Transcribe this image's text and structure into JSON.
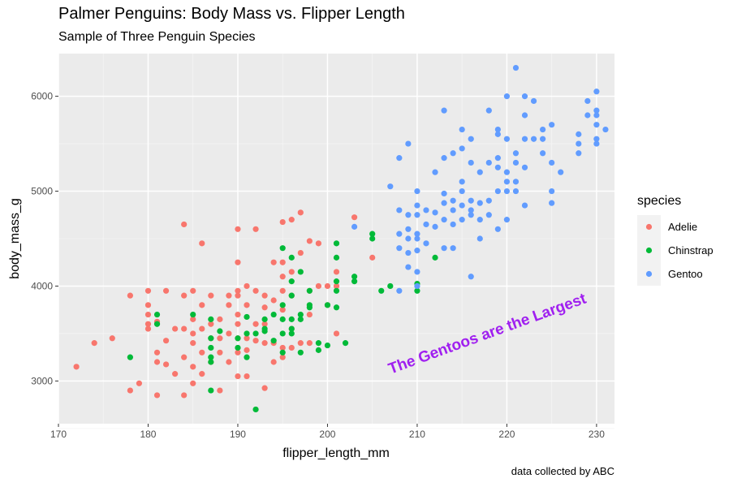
{
  "chart_data": {
    "type": "scatter",
    "title": "Palmer Penguins: Body Mass vs. Flipper Length",
    "subtitle": "Sample of Three Penguin Species",
    "caption": "data collected by ABC",
    "xlabel": "flipper_length_mm",
    "ylabel": "body_mass_g",
    "xlim": [
      170,
      232
    ],
    "ylim": [
      2550,
      6450
    ],
    "xticks": [
      170,
      180,
      190,
      200,
      210,
      220,
      230
    ],
    "yticks": [
      3000,
      4000,
      5000,
      6000
    ],
    "grid": true,
    "legend_title": "species",
    "legend_position": "right",
    "annotation": {
      "text": "The Gentoos are the Largest",
      "x": 218,
      "y": 3450,
      "angle": -20,
      "color": "#a020f0"
    },
    "series": [
      {
        "name": "Adelie",
        "color": "#f8766d",
        "points": [
          [
            172,
            3150
          ],
          [
            174,
            3400
          ],
          [
            176,
            3450
          ],
          [
            178,
            2900
          ],
          [
            178,
            3900
          ],
          [
            179,
            2975
          ],
          [
            180,
            3550
          ],
          [
            180,
            3600
          ],
          [
            180,
            3700
          ],
          [
            180,
            3800
          ],
          [
            180,
            3950
          ],
          [
            181,
            2850
          ],
          [
            181,
            3200
          ],
          [
            181,
            3300
          ],
          [
            181,
            3625
          ],
          [
            182,
            3175
          ],
          [
            182,
            3425
          ],
          [
            182,
            3950
          ],
          [
            183,
            3075
          ],
          [
            183,
            3550
          ],
          [
            184,
            2850
          ],
          [
            184,
            3250
          ],
          [
            184,
            3550
          ],
          [
            184,
            3900
          ],
          [
            184,
            4650
          ],
          [
            185,
            2975
          ],
          [
            185,
            3150
          ],
          [
            185,
            3400
          ],
          [
            185,
            3500
          ],
          [
            185,
            3650
          ],
          [
            185,
            3950
          ],
          [
            186,
            3075
          ],
          [
            186,
            3300
          ],
          [
            186,
            3550
          ],
          [
            186,
            3800
          ],
          [
            186,
            4450
          ],
          [
            187,
            3200
          ],
          [
            187,
            3450
          ],
          [
            187,
            3600
          ],
          [
            187,
            3900
          ],
          [
            188,
            2900
          ],
          [
            188,
            3300
          ],
          [
            188,
            3450
          ],
          [
            188,
            3650
          ],
          [
            189,
            3200
          ],
          [
            189,
            3500
          ],
          [
            189,
            3800
          ],
          [
            189,
            3900
          ],
          [
            190,
            3050
          ],
          [
            190,
            3300
          ],
          [
            190,
            3450
          ],
          [
            190,
            3600
          ],
          [
            190,
            3700
          ],
          [
            190,
            3900
          ],
          [
            190,
            3950
          ],
          [
            190,
            4250
          ],
          [
            190,
            4600
          ],
          [
            191,
            3050
          ],
          [
            191,
            3325
          ],
          [
            191,
            3450
          ],
          [
            191,
            3800
          ],
          [
            191,
            4000
          ],
          [
            192,
            3425
          ],
          [
            192,
            3600
          ],
          [
            192,
            3950
          ],
          [
            192,
            4600
          ],
          [
            193,
            2925
          ],
          [
            193,
            3400
          ],
          [
            193,
            3600
          ],
          [
            193,
            3775
          ],
          [
            193,
            3900
          ],
          [
            194,
            3200
          ],
          [
            194,
            3400
          ],
          [
            194,
            3850
          ],
          [
            194,
            4250
          ],
          [
            195,
            3250
          ],
          [
            195,
            3350
          ],
          [
            195,
            3750
          ],
          [
            195,
            3950
          ],
          [
            195,
            4100
          ],
          [
            195,
            4250
          ],
          [
            195,
            4675
          ],
          [
            196,
            3350
          ],
          [
            196,
            3550
          ],
          [
            196,
            3900
          ],
          [
            196,
            4150
          ],
          [
            196,
            4700
          ],
          [
            197,
            3400
          ],
          [
            197,
            4350
          ],
          [
            197,
            4775
          ],
          [
            198,
            3400
          ],
          [
            198,
            3700
          ],
          [
            198,
            3950
          ],
          [
            198,
            4475
          ],
          [
            199,
            4000
          ],
          [
            199,
            4450
          ],
          [
            200,
            3800
          ],
          [
            200,
            4000
          ],
          [
            201,
            3500
          ],
          [
            201,
            4000
          ],
          [
            201,
            4150
          ],
          [
            203,
            4725
          ],
          [
            205,
            4300
          ]
        ]
      },
      {
        "name": "Chinstrap",
        "color": "#00ba38",
        "points": [
          [
            178,
            3250
          ],
          [
            181,
            3600
          ],
          [
            181,
            3700
          ],
          [
            185,
            3700
          ],
          [
            187,
            2900
          ],
          [
            187,
            3200
          ],
          [
            187,
            3250
          ],
          [
            187,
            3350
          ],
          [
            187,
            3450
          ],
          [
            187,
            3650
          ],
          [
            188,
            3525
          ],
          [
            190,
            3350
          ],
          [
            190,
            3450
          ],
          [
            191,
            3250
          ],
          [
            191,
            3500
          ],
          [
            191,
            3675
          ],
          [
            192,
            2700
          ],
          [
            192,
            3500
          ],
          [
            193,
            3525
          ],
          [
            193,
            3650
          ],
          [
            194,
            3425
          ],
          [
            194,
            3700
          ],
          [
            195,
            3300
          ],
          [
            195,
            3500
          ],
          [
            195,
            3650
          ],
          [
            195,
            3800
          ],
          [
            195,
            4400
          ],
          [
            196,
            3500
          ],
          [
            196,
            3550
          ],
          [
            196,
            3900
          ],
          [
            196,
            4050
          ],
          [
            196,
            4300
          ],
          [
            197,
            3300
          ],
          [
            197,
            3650
          ],
          [
            197,
            3700
          ],
          [
            197,
            4150
          ],
          [
            198,
            3775
          ],
          [
            198,
            3800
          ],
          [
            198,
            3950
          ],
          [
            199,
            3325
          ],
          [
            199,
            3400
          ],
          [
            200,
            3375
          ],
          [
            200,
            3800
          ],
          [
            201,
            3775
          ],
          [
            201,
            4050
          ],
          [
            201,
            4300
          ],
          [
            201,
            4450
          ],
          [
            202,
            3400
          ],
          [
            203,
            4050
          ],
          [
            203,
            4100
          ],
          [
            205,
            4500
          ],
          [
            205,
            4550
          ],
          [
            206,
            3950
          ],
          [
            207,
            4000
          ],
          [
            210,
            3950
          ],
          [
            210,
            4025
          ],
          [
            212,
            4300
          ],
          [
            201,
            3950
          ],
          [
            193,
            3550
          ],
          [
            196,
            3650
          ]
        ]
      },
      {
        "name": "Gentoo",
        "color": "#619cff",
        "points": [
          [
            203,
            4625
          ],
          [
            207,
            5050
          ],
          [
            208,
            3950
          ],
          [
            208,
            4400
          ],
          [
            208,
            4550
          ],
          [
            208,
            4800
          ],
          [
            208,
            5350
          ],
          [
            209,
            4200
          ],
          [
            209,
            4350
          ],
          [
            209,
            4500
          ],
          [
            209,
            4600
          ],
          [
            209,
            4750
          ],
          [
            209,
            5500
          ],
          [
            210,
            4000
          ],
          [
            210,
            4150
          ],
          [
            210,
            4375
          ],
          [
            210,
            4500
          ],
          [
            210,
            4550
          ],
          [
            210,
            4750
          ],
          [
            210,
            4850
          ],
          [
            210,
            5000
          ],
          [
            211,
            4450
          ],
          [
            211,
            4650
          ],
          [
            211,
            4800
          ],
          [
            212,
            4625
          ],
          [
            212,
            4775
          ],
          [
            212,
            5200
          ],
          [
            213,
            4400
          ],
          [
            213,
            4700
          ],
          [
            213,
            4875
          ],
          [
            213,
            4975
          ],
          [
            213,
            5350
          ],
          [
            213,
            5850
          ],
          [
            214,
            4400
          ],
          [
            214,
            4650
          ],
          [
            214,
            4800
          ],
          [
            214,
            4900
          ],
          [
            214,
            5400
          ],
          [
            215,
            4700
          ],
          [
            215,
            4850
          ],
          [
            215,
            5000
          ],
          [
            215,
            5100
          ],
          [
            215,
            5450
          ],
          [
            215,
            5650
          ],
          [
            216,
            4100
          ],
          [
            216,
            4750
          ],
          [
            216,
            4800
          ],
          [
            216,
            4900
          ],
          [
            216,
            5300
          ],
          [
            216,
            5550
          ],
          [
            217,
            4500
          ],
          [
            217,
            4700
          ],
          [
            217,
            4875
          ],
          [
            217,
            5200
          ],
          [
            218,
            4750
          ],
          [
            218,
            4900
          ],
          [
            218,
            5300
          ],
          [
            218,
            5850
          ],
          [
            219,
            4600
          ],
          [
            219,
            5000
          ],
          [
            219,
            5250
          ],
          [
            219,
            5350
          ],
          [
            219,
            5600
          ],
          [
            219,
            5650
          ],
          [
            220,
            4700
          ],
          [
            220,
            5000
          ],
          [
            220,
            5100
          ],
          [
            220,
            5200
          ],
          [
            220,
            5550
          ],
          [
            220,
            6000
          ],
          [
            221,
            5000
          ],
          [
            221,
            5100
          ],
          [
            221,
            5300
          ],
          [
            221,
            5400
          ],
          [
            221,
            6300
          ],
          [
            222,
            4850
          ],
          [
            222,
            5250
          ],
          [
            222,
            5550
          ],
          [
            222,
            5800
          ],
          [
            222,
            6000
          ],
          [
            223,
            5550
          ],
          [
            223,
            5950
          ],
          [
            224,
            5400
          ],
          [
            224,
            5550
          ],
          [
            224,
            5650
          ],
          [
            225,
            4875
          ],
          [
            225,
            5000
          ],
          [
            225,
            5300
          ],
          [
            225,
            5700
          ],
          [
            226,
            5200
          ],
          [
            228,
            5400
          ],
          [
            228,
            5500
          ],
          [
            228,
            5600
          ],
          [
            229,
            5800
          ],
          [
            229,
            5950
          ],
          [
            230,
            5500
          ],
          [
            230,
            5550
          ],
          [
            230,
            5700
          ],
          [
            230,
            5800
          ],
          [
            230,
            5850
          ],
          [
            230,
            6050
          ],
          [
            231,
            5650
          ]
        ]
      }
    ]
  }
}
